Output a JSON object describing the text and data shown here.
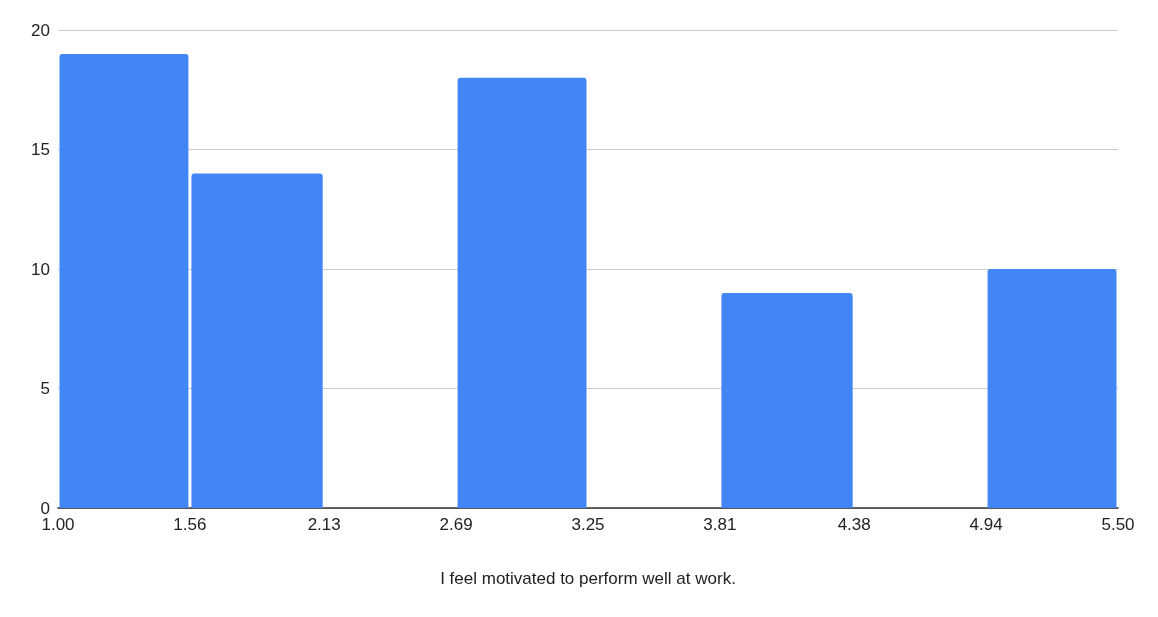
{
  "chart_data": {
    "type": "histogram",
    "xlabel": "I feel motivated to perform well at work.",
    "bins": [
      1.0,
      1.56,
      2.13,
      2.69,
      3.25,
      3.81,
      4.38,
      4.94,
      5.5
    ],
    "values": [
      19,
      14,
      0,
      18,
      0,
      9,
      0,
      10
    ],
    "color": "#4285f4",
    "xlim": [
      1,
      5.5
    ],
    "xticks": [
      {
        "value": 1,
        "label": "1.00"
      },
      1.56,
      2.13,
      2.69,
      3.25,
      3.81,
      4.38,
      4.94,
      {
        "value": 5.5,
        "label": "5.50"
      }
    ],
    "ylim": [
      0,
      20
    ],
    "yticks": [
      0,
      5,
      10,
      15,
      20
    ],
    "grid": "y"
  }
}
